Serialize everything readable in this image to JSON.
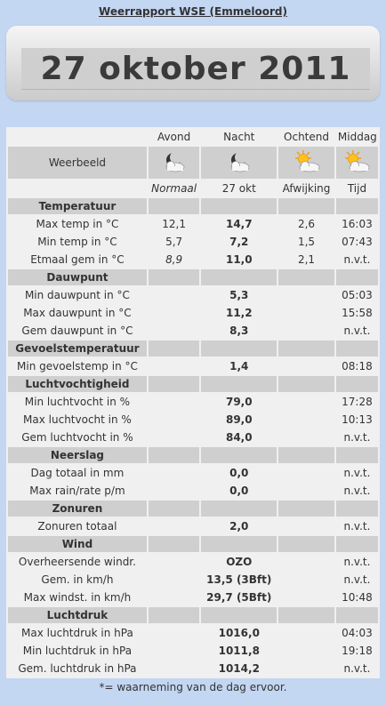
{
  "title": "Weerrapport WSE (Emmeloord)",
  "date": "27 oktober 2011",
  "columns": [
    "Avond",
    "Nacht",
    "Ochtend",
    "Middag"
  ],
  "weerbeeld_label": "Weerbeeld",
  "icons": {
    "avond": "moon-cloud-icon",
    "nacht": "moon-cloud-icon",
    "ochtend": "sun-cloud-icon",
    "middag": "sun-cloud-icon"
  },
  "subheaders": [
    "Normaal",
    "27 okt",
    "Afwijking",
    "Tijd"
  ],
  "sections": {
    "temperatuur": "Temperatuur",
    "dauwpunt": "Dauwpunt",
    "gevoelstemperatuur": "Gevoelstemperatuur",
    "luchtvochtigheid": "Luchtvochtigheid",
    "neerslag": "Neerslag",
    "zonuren": "Zonuren",
    "wind": "Wind",
    "luchtdruk": "Luchtdruk"
  },
  "rows": {
    "max_temp": {
      "label": "Max temp in °C",
      "normaal": "12,1",
      "value": "14,7",
      "afwijking": "2,6",
      "tijd": "16:03"
    },
    "min_temp": {
      "label": "Min temp in °C",
      "normaal": "5,7",
      "value": "7,2",
      "afwijking": "1,5",
      "tijd": "07:43"
    },
    "etmaal": {
      "label": "Etmaal gem in °C",
      "normaal": "8,9",
      "value": "11,0",
      "afwijking": "2,1",
      "tijd": "n.v.t."
    },
    "min_dauw": {
      "label": "Min dauwpunt in °C",
      "value": "5,3",
      "tijd": "05:03"
    },
    "max_dauw": {
      "label": "Max dauwpunt in °C",
      "value": "11,2",
      "tijd": "15:58"
    },
    "gem_dauw": {
      "label": "Gem dauwpunt in °C",
      "value": "8,3",
      "tijd": "n.v.t."
    },
    "min_gevoel": {
      "label": "Min gevoelstemp in °C",
      "value": "1,4",
      "tijd": "08:18"
    },
    "min_vocht": {
      "label": "Min luchtvocht in %",
      "value": "79,0",
      "tijd": "17:28"
    },
    "max_vocht": {
      "label": "Max luchtvocht in %",
      "value": "89,0",
      "tijd": "10:13"
    },
    "gem_vocht": {
      "label": "Gem luchtvocht in %",
      "value": "84,0",
      "tijd": "n.v.t."
    },
    "dag_totaal": {
      "label": "Dag totaal in mm",
      "value": "0,0",
      "tijd": "n.v.t."
    },
    "max_rain": {
      "label": "Max rain/rate p/m",
      "value": "0,0",
      "tijd": "n.v.t."
    },
    "zonuren_totaal": {
      "label": "Zonuren totaal",
      "value": "2,0",
      "tijd": "n.v.t."
    },
    "windr": {
      "label": "Overheersende windr.",
      "value": "OZO",
      "tijd": "n.v.t."
    },
    "gem_wind": {
      "label": "Gem. in km/h",
      "value": "13,5 (3Bft)",
      "tijd": "n.v.t."
    },
    "max_wind": {
      "label": "Max windst. in km/h",
      "value": "29,7 (5Bft)",
      "tijd": "10:48"
    },
    "max_druk": {
      "label": "Max luchtdruk in hPa",
      "value": "1016,0",
      "tijd": "04:03"
    },
    "min_druk": {
      "label": "Min luchtdruk in hPa",
      "value": "1011,8",
      "tijd": "19:18"
    },
    "gem_druk": {
      "label": "Gem. luchtdruk in hPa",
      "value": "1014,2",
      "tijd": "n.v.t."
    }
  },
  "footer": "*= waarneming van de dag ervoor.",
  "colors": {
    "background": "#c3d6f2",
    "panel": "#f0f0f0",
    "section": "#cfcfcf",
    "deviation": "#cc1111"
  }
}
